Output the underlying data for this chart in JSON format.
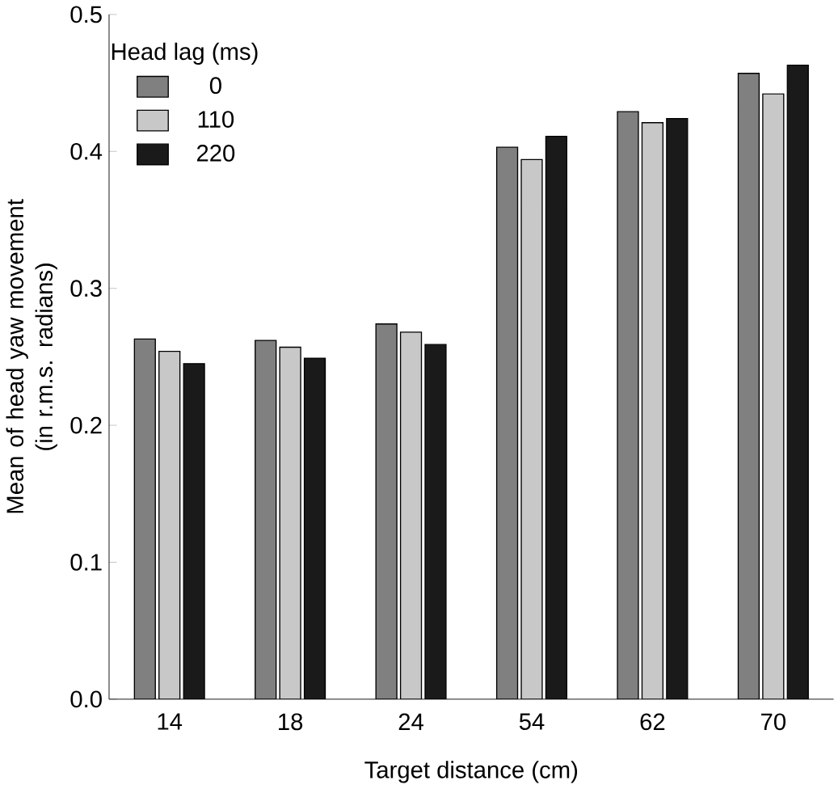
{
  "chart_data": {
    "type": "bar",
    "xlabel": "Target distance (cm)",
    "ylabel": "Mean of head yaw movement\n(in r.m.s. radians)",
    "legend_title": "Head lag (ms)",
    "legend": "top left",
    "categories": [
      "14",
      "18",
      "24",
      "54",
      "62",
      "70"
    ],
    "series": [
      {
        "name": "0",
        "color": "#808080",
        "values": [
          0.263,
          0.262,
          0.274,
          0.403,
          0.429,
          0.457
        ]
      },
      {
        "name": "110",
        "color": "#c8c8c8",
        "values": [
          0.254,
          0.257,
          0.268,
          0.394,
          0.421,
          0.442
        ]
      },
      {
        "name": "220",
        "color": "#1a1a1a",
        "values": [
          0.245,
          0.249,
          0.259,
          0.411,
          0.424,
          0.463
        ]
      }
    ],
    "ylim": [
      0,
      0.5
    ],
    "yticks": [
      {
        "value": 0,
        "label": "0.0"
      },
      {
        "value": 0.1,
        "label": "0.1"
      },
      {
        "value": 0.2,
        "label": "0.2"
      },
      {
        "value": 0.3,
        "label": "0.3"
      },
      {
        "value": 0.4,
        "label": "0.4"
      },
      {
        "value": 0.5,
        "label": "0.5"
      }
    ]
  }
}
